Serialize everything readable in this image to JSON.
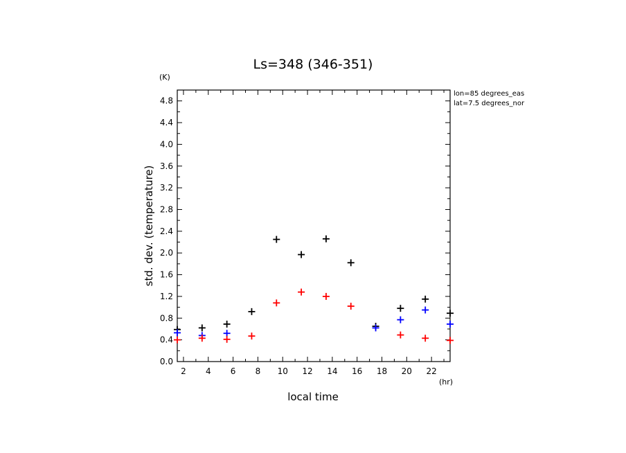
{
  "chart_data": {
    "type": "scatter",
    "title": "Ls=348 (346-351)",
    "xlabel": "local time",
    "ylabel": "std. dev. (temperature)",
    "x_unit": "(hr)",
    "y_unit": "(K)",
    "xlim": [
      1.5,
      23.5
    ],
    "ylim": [
      0.0,
      5.0
    ],
    "x_ticks": [
      2,
      4,
      6,
      8,
      10,
      12,
      14,
      16,
      18,
      20,
      22
    ],
    "y_ticks": [
      0.0,
      0.4,
      0.8,
      1.2,
      1.6,
      2.0,
      2.4,
      2.8,
      3.2,
      3.6,
      4.0,
      4.4,
      4.8
    ],
    "annotations": [
      "lon=85 degrees_eas",
      "lat=7.5 degrees_nor"
    ],
    "series": [
      {
        "color": "#000000",
        "points": [
          {
            "x": 1.5,
            "y": 0.59
          },
          {
            "x": 3.5,
            "y": 0.62
          },
          {
            "x": 5.5,
            "y": 0.69
          },
          {
            "x": 7.5,
            "y": 0.92
          },
          {
            "x": 9.5,
            "y": 2.25
          },
          {
            "x": 11.5,
            "y": 1.97
          },
          {
            "x": 13.5,
            "y": 2.26
          },
          {
            "x": 15.5,
            "y": 1.82
          },
          {
            "x": 17.5,
            "y": 0.65
          },
          {
            "x": 19.5,
            "y": 0.98
          },
          {
            "x": 21.5,
            "y": 1.15
          },
          {
            "x": 23.5,
            "y": 0.89
          }
        ]
      },
      {
        "color": "#0000ff",
        "points": [
          {
            "x": 1.5,
            "y": 0.53
          },
          {
            "x": 3.5,
            "y": 0.48
          },
          {
            "x": 5.5,
            "y": 0.52
          },
          {
            "x": 17.5,
            "y": 0.62
          },
          {
            "x": 19.5,
            "y": 0.77
          },
          {
            "x": 21.5,
            "y": 0.95
          },
          {
            "x": 23.5,
            "y": 0.69
          }
        ]
      },
      {
        "color": "#ff0000",
        "points": [
          {
            "x": 1.5,
            "y": 0.4
          },
          {
            "x": 3.5,
            "y": 0.43
          },
          {
            "x": 5.5,
            "y": 0.41
          },
          {
            "x": 7.5,
            "y": 0.47
          },
          {
            "x": 9.5,
            "y": 1.08
          },
          {
            "x": 11.5,
            "y": 1.28
          },
          {
            "x": 13.5,
            "y": 1.2
          },
          {
            "x": 15.5,
            "y": 1.02
          },
          {
            "x": 19.5,
            "y": 0.49
          },
          {
            "x": 21.5,
            "y": 0.43
          },
          {
            "x": 23.5,
            "y": 0.39
          }
        ]
      }
    ]
  }
}
